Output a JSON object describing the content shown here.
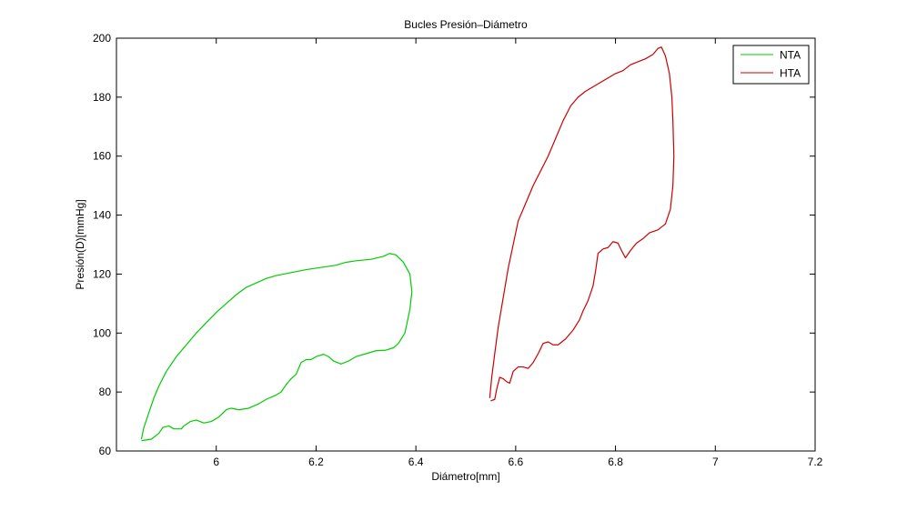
{
  "chart_data": {
    "type": "line",
    "title": "Bucles Presión–Diámetro",
    "xlabel": "Diámetro[mm]",
    "ylabel": "Presión(D)[mmHg]",
    "xlim": [
      5.8,
      7.2
    ],
    "ylim": [
      60,
      200
    ],
    "xticks": [
      6,
      6.2,
      6.4,
      6.6,
      6.8,
      7,
      7.2
    ],
    "xtick_labels": [
      "6",
      "6.2",
      "6.4",
      "6.6",
      "6.8",
      "7",
      "7.2"
    ],
    "yticks": [
      60,
      80,
      100,
      120,
      140,
      160,
      180,
      200
    ],
    "ytick_labels": [
      "60",
      "80",
      "100",
      "120",
      "140",
      "160",
      "180",
      "200"
    ],
    "grid": false,
    "legend_position": "top-right",
    "series": [
      {
        "name": "NTA",
        "color": "#00cc00",
        "points": [
          [
            5.85,
            63.5
          ],
          [
            5.87,
            64.0
          ],
          [
            5.885,
            66.0
          ],
          [
            5.893,
            68.0
          ],
          [
            5.905,
            68.5
          ],
          [
            5.915,
            67.5
          ],
          [
            5.93,
            67.5
          ],
          [
            5.935,
            68.5
          ],
          [
            5.948,
            70.0
          ],
          [
            5.96,
            70.5
          ],
          [
            5.975,
            69.5
          ],
          [
            5.99,
            70.0
          ],
          [
            6.005,
            71.5
          ],
          [
            6.02,
            74.0
          ],
          [
            6.03,
            74.5
          ],
          [
            6.045,
            74.0
          ],
          [
            6.065,
            74.5
          ],
          [
            6.085,
            76.0
          ],
          [
            6.1,
            77.5
          ],
          [
            6.12,
            79.0
          ],
          [
            6.13,
            80.0
          ],
          [
            6.14,
            82.5
          ],
          [
            6.15,
            84.5
          ],
          [
            6.16,
            86.0
          ],
          [
            6.17,
            90.0
          ],
          [
            6.18,
            91.0
          ],
          [
            6.19,
            91.0
          ],
          [
            6.2,
            92.0
          ],
          [
            6.215,
            92.8
          ],
          [
            6.225,
            92.0
          ],
          [
            6.235,
            90.5
          ],
          [
            6.25,
            89.5
          ],
          [
            6.265,
            90.5
          ],
          [
            6.28,
            92.0
          ],
          [
            6.3,
            93.0
          ],
          [
            6.32,
            94.0
          ],
          [
            6.34,
            94.2
          ],
          [
            6.355,
            95.0
          ],
          [
            6.365,
            96.5
          ],
          [
            6.378,
            100.0
          ],
          [
            6.388,
            108.0
          ],
          [
            6.392,
            114.0
          ],
          [
            6.388,
            120.0
          ],
          [
            6.375,
            124.0
          ],
          [
            6.36,
            126.5
          ],
          [
            6.347,
            127.0
          ],
          [
            6.335,
            126.0
          ],
          [
            6.31,
            125.0
          ],
          [
            6.28,
            124.5
          ],
          [
            6.26,
            124.0
          ],
          [
            6.24,
            123.0
          ],
          [
            6.22,
            122.5
          ],
          [
            6.2,
            122.0
          ],
          [
            6.18,
            121.5
          ],
          [
            6.15,
            120.5
          ],
          [
            6.12,
            119.5
          ],
          [
            6.1,
            118.5
          ],
          [
            6.08,
            117.0
          ],
          [
            6.06,
            115.5
          ],
          [
            6.04,
            113.0
          ],
          [
            6.02,
            110.0
          ],
          [
            6.0,
            107.0
          ],
          [
            5.98,
            103.5
          ],
          [
            5.96,
            100.0
          ],
          [
            5.94,
            96.0
          ],
          [
            5.92,
            92.0
          ],
          [
            5.9,
            87.0
          ],
          [
            5.885,
            82.0
          ],
          [
            5.875,
            78.0
          ],
          [
            5.865,
            73.0
          ],
          [
            5.855,
            68.0
          ],
          [
            5.85,
            64.0
          ]
        ]
      },
      {
        "name": "HTA",
        "color": "#cc0000",
        "points": [
          [
            6.55,
            77.0
          ],
          [
            6.558,
            77.5
          ],
          [
            6.562,
            81.0
          ],
          [
            6.568,
            85.0
          ],
          [
            6.575,
            84.5
          ],
          [
            6.582,
            83.5
          ],
          [
            6.588,
            83.0
          ],
          [
            6.595,
            87.0
          ],
          [
            6.605,
            88.5
          ],
          [
            6.615,
            88.5
          ],
          [
            6.625,
            88.0
          ],
          [
            6.635,
            90.0
          ],
          [
            6.645,
            93.0
          ],
          [
            6.655,
            96.5
          ],
          [
            6.665,
            97.0
          ],
          [
            6.675,
            96.0
          ],
          [
            6.685,
            96.0
          ],
          [
            6.7,
            98.0
          ],
          [
            6.715,
            101.0
          ],
          [
            6.728,
            104.5
          ],
          [
            6.735,
            107.5
          ],
          [
            6.745,
            111.0
          ],
          [
            6.755,
            116.0
          ],
          [
            6.76,
            121.0
          ],
          [
            6.765,
            127.0
          ],
          [
            6.775,
            128.5
          ],
          [
            6.785,
            129.0
          ],
          [
            6.795,
            131.0
          ],
          [
            6.805,
            130.5
          ],
          [
            6.812,
            128.0
          ],
          [
            6.82,
            125.5
          ],
          [
            6.83,
            128.0
          ],
          [
            6.842,
            130.5
          ],
          [
            6.855,
            132.0
          ],
          [
            6.868,
            134.0
          ],
          [
            6.885,
            135.0
          ],
          [
            6.9,
            137.0
          ],
          [
            6.91,
            142.0
          ],
          [
            6.915,
            150.0
          ],
          [
            6.917,
            160.0
          ],
          [
            6.915,
            172.0
          ],
          [
            6.913,
            180.0
          ],
          [
            6.908,
            188.0
          ],
          [
            6.9,
            194.0
          ],
          [
            6.892,
            197.0
          ],
          [
            6.885,
            196.5
          ],
          [
            6.875,
            194.5
          ],
          [
            6.86,
            193.0
          ],
          [
            6.845,
            192.0
          ],
          [
            6.83,
            191.0
          ],
          [
            6.815,
            189.0
          ],
          [
            6.8,
            188.0
          ],
          [
            6.78,
            186.0
          ],
          [
            6.76,
            184.0
          ],
          [
            6.74,
            182.0
          ],
          [
            6.725,
            180.0
          ],
          [
            6.71,
            177.0
          ],
          [
            6.695,
            172.0
          ],
          [
            6.68,
            166.0
          ],
          [
            6.665,
            160.0
          ],
          [
            6.65,
            155.0
          ],
          [
            6.635,
            150.0
          ],
          [
            6.62,
            144.0
          ],
          [
            6.605,
            138.0
          ],
          [
            6.595,
            130.0
          ],
          [
            6.585,
            122.0
          ],
          [
            6.575,
            112.0
          ],
          [
            6.565,
            102.0
          ],
          [
            6.558,
            93.0
          ],
          [
            6.552,
            85.0
          ],
          [
            6.548,
            78.0
          ]
        ]
      }
    ]
  }
}
